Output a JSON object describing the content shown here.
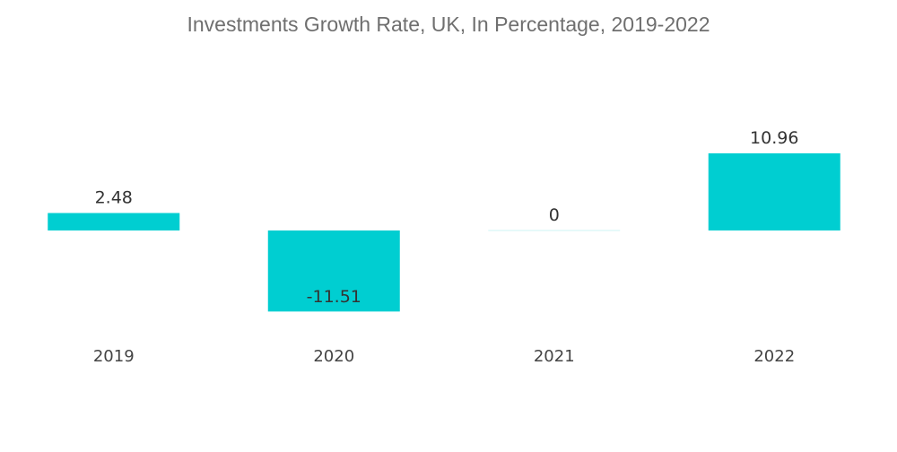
{
  "chart_data": {
    "type": "bar",
    "title": "Investments Growth Rate, UK, In Percentage, 2019-2022",
    "categories": [
      "2019",
      "2020",
      "2021",
      "2022"
    ],
    "values": [
      2.48,
      -11.51,
      0,
      10.96
    ],
    "value_labels": [
      "2.48",
      "-11.51",
      "0",
      "10.96"
    ],
    "xlabel": "",
    "ylabel": "",
    "ylim": [
      -11.51,
      10.96
    ],
    "grid": false,
    "legend": "none",
    "bar_color": "#00ced1"
  }
}
